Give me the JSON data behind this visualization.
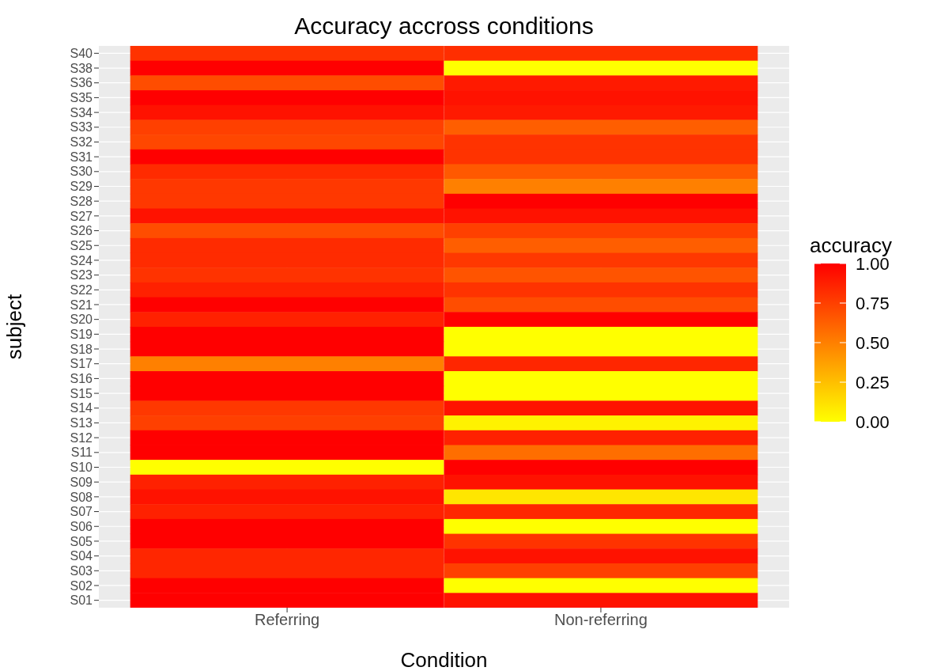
{
  "chart_data": {
    "type": "heatmap",
    "title": "Accuracy accross conditions",
    "xlabel": "Condition",
    "ylabel": "subject",
    "clabel": "accuracy",
    "categories": [
      "Referring",
      "Non-referring"
    ],
    "y_categories": [
      "S40",
      "S38",
      "S36",
      "S35",
      "S34",
      "S33",
      "S32",
      "S31",
      "S30",
      "S29",
      "S28",
      "S27",
      "S26",
      "S25",
      "S24",
      "S23",
      "S22",
      "S21",
      "S20",
      "S19",
      "S18",
      "S17",
      "S16",
      "S15",
      "S14",
      "S13",
      "S12",
      "S11",
      "S10",
      "S09",
      "S08",
      "S07",
      "S06",
      "S05",
      "S04",
      "S03",
      "S02",
      "S01"
    ],
    "cells": [
      [
        0.8,
        0.82
      ],
      [
        1.0,
        0.0
      ],
      [
        0.7,
        0.9
      ],
      [
        1.0,
        0.93
      ],
      [
        0.93,
        0.9
      ],
      [
        0.75,
        0.63
      ],
      [
        0.72,
        0.8
      ],
      [
        1.0,
        0.8
      ],
      [
        0.83,
        0.65
      ],
      [
        0.78,
        0.5
      ],
      [
        0.78,
        1.0
      ],
      [
        0.93,
        0.93
      ],
      [
        0.7,
        0.75
      ],
      [
        0.83,
        0.63
      ],
      [
        0.83,
        0.78
      ],
      [
        0.8,
        0.67
      ],
      [
        0.87,
        0.8
      ],
      [
        1.0,
        0.7
      ],
      [
        0.87,
        1.0
      ],
      [
        1.0,
        0.0
      ],
      [
        1.0,
        0.0
      ],
      [
        0.5,
        0.85
      ],
      [
        1.0,
        0.0
      ],
      [
        1.0,
        0.0
      ],
      [
        0.78,
        0.93
      ],
      [
        0.75,
        0.05
      ],
      [
        1.0,
        0.87
      ],
      [
        1.0,
        0.57
      ],
      [
        0.0,
        1.0
      ],
      [
        0.87,
        0.93
      ],
      [
        0.93,
        0.1
      ],
      [
        0.87,
        0.85
      ],
      [
        1.0,
        0.0
      ],
      [
        1.0,
        0.8
      ],
      [
        0.85,
        0.93
      ],
      [
        0.85,
        0.75
      ],
      [
        1.0,
        0.0
      ],
      [
        1.0,
        0.93
      ]
    ],
    "clim": [
      0,
      1
    ],
    "cticks": [
      {
        "value": 0,
        "label": "0.00"
      },
      {
        "value": 0.25,
        "label": "0.25"
      },
      {
        "value": 0.5,
        "label": "0.50"
      },
      {
        "value": 0.75,
        "label": "0.75"
      },
      {
        "value": 1,
        "label": "1.00"
      }
    ],
    "grid": true
  }
}
